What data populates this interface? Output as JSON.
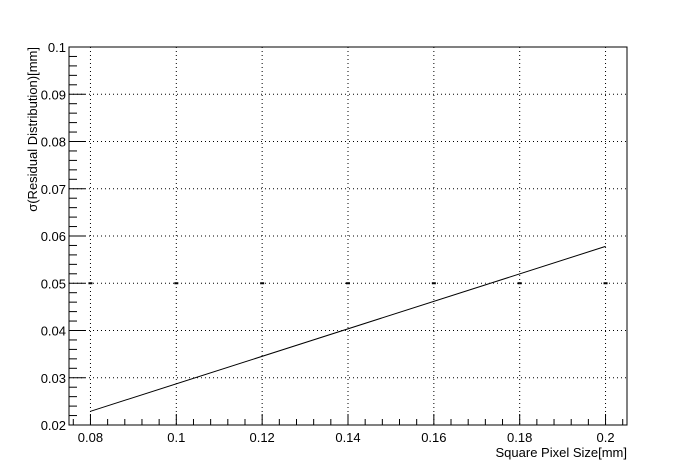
{
  "chart_data": {
    "type": "scatter",
    "xlabel": "Square Pixel Size[mm]",
    "ylabel": "σ(Residual Distribution)[mm]",
    "xlim": [
      0.075,
      0.205
    ],
    "ylim": [
      0.02,
      0.1
    ],
    "grid": true,
    "x_ticks": [
      0.08,
      0.1,
      0.12,
      0.14,
      0.16,
      0.18,
      0.2
    ],
    "x_tick_labels": [
      "0.08",
      "0.1",
      "0.12",
      "0.14",
      "0.16",
      "0.18",
      "0.2"
    ],
    "y_ticks": [
      0.02,
      0.03,
      0.04,
      0.05,
      0.06,
      0.07,
      0.08,
      0.09,
      0.1
    ],
    "y_tick_labels": [
      "0.02",
      "0.03",
      "0.04",
      "0.05",
      "0.06",
      "0.07",
      "0.08",
      "0.09",
      "0.1"
    ],
    "series": [
      {
        "type": "scatter",
        "x": [
          0.08,
          0.1,
          0.12,
          0.14,
          0.16,
          0.18,
          0.2
        ],
        "y": [
          0.05,
          0.05,
          0.05,
          0.05,
          0.05,
          0.05,
          0.05
        ]
      },
      {
        "type": "line",
        "x": [
          0.08,
          0.2
        ],
        "y": [
          0.0229,
          0.0578
        ]
      }
    ]
  }
}
